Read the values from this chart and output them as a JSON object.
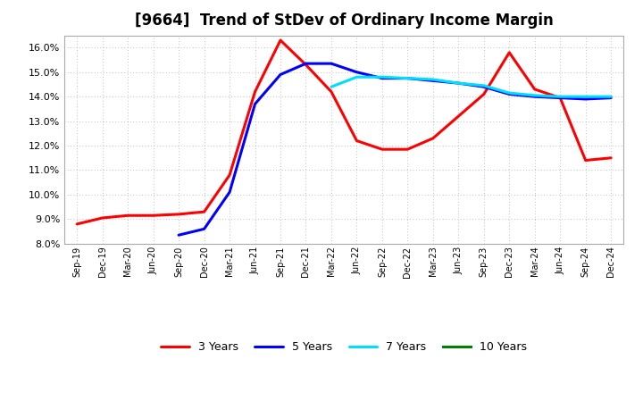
{
  "title": "[9664]  Trend of StDev of Ordinary Income Margin",
  "title_fontsize": 12,
  "ylim": [
    0.08,
    0.165
  ],
  "yticks": [
    0.08,
    0.09,
    0.1,
    0.11,
    0.12,
    0.13,
    0.14,
    0.15,
    0.16
  ],
  "background_color": "#ffffff",
  "grid_color": "#aaaaaa",
  "series": {
    "3 Years": {
      "color": "#ff0000",
      "data": [
        [
          "Sep-19",
          0.088
        ],
        [
          "Dec-19",
          0.0905
        ],
        [
          "Mar-20",
          0.0915
        ],
        [
          "Jun-20",
          0.0915
        ],
        [
          "Sep-20",
          0.092
        ],
        [
          "Dec-20",
          0.093
        ],
        [
          "Mar-21",
          0.108
        ],
        [
          "Jun-21",
          0.142
        ],
        [
          "Sep-21",
          0.163
        ],
        [
          "Dec-21",
          0.153
        ],
        [
          "Mar-22",
          0.142
        ],
        [
          "Jun-22",
          0.122
        ],
        [
          "Sep-22",
          0.1185
        ],
        [
          "Dec-22",
          0.1185
        ],
        [
          "Mar-23",
          0.123
        ],
        [
          "Jun-23",
          0.132
        ],
        [
          "Sep-23",
          0.141
        ],
        [
          "Dec-23",
          0.158
        ],
        [
          "Mar-24",
          0.143
        ],
        [
          "Jun-24",
          0.1395
        ],
        [
          "Sep-24",
          0.114
        ],
        [
          "Dec-24",
          0.115
        ]
      ]
    },
    "5 Years": {
      "color": "#0000ff",
      "data": [
        [
          "Sep-19",
          null
        ],
        [
          "Dec-19",
          null
        ],
        [
          "Mar-20",
          null
        ],
        [
          "Jun-20",
          null
        ],
        [
          "Sep-20",
          0.0835
        ],
        [
          "Dec-20",
          0.086
        ],
        [
          "Mar-21",
          0.101
        ],
        [
          "Jun-21",
          0.137
        ],
        [
          "Sep-21",
          0.149
        ],
        [
          "Dec-21",
          0.1535
        ],
        [
          "Mar-22",
          0.1535
        ],
        [
          "Jun-22",
          0.15
        ],
        [
          "Sep-22",
          0.1475
        ],
        [
          "Dec-22",
          0.1475
        ],
        [
          "Mar-23",
          0.1465
        ],
        [
          "Jun-23",
          0.1455
        ],
        [
          "Sep-23",
          0.144
        ],
        [
          "Dec-23",
          0.141
        ],
        [
          "Mar-24",
          0.14
        ],
        [
          "Jun-24",
          0.1395
        ],
        [
          "Sep-24",
          0.139
        ],
        [
          "Dec-24",
          0.1395
        ]
      ]
    },
    "7 Years": {
      "color": "#00ddff",
      "data": [
        [
          "Sep-19",
          null
        ],
        [
          "Dec-19",
          null
        ],
        [
          "Mar-20",
          null
        ],
        [
          "Jun-20",
          null
        ],
        [
          "Sep-20",
          null
        ],
        [
          "Dec-20",
          null
        ],
        [
          "Mar-21",
          null
        ],
        [
          "Jun-21",
          null
        ],
        [
          "Sep-21",
          null
        ],
        [
          "Dec-21",
          null
        ],
        [
          "Mar-22",
          0.144
        ],
        [
          "Jun-22",
          0.148
        ],
        [
          "Sep-22",
          0.148
        ],
        [
          "Dec-22",
          0.1475
        ],
        [
          "Mar-23",
          0.147
        ],
        [
          "Jun-23",
          0.1455
        ],
        [
          "Sep-23",
          0.1445
        ],
        [
          "Dec-23",
          0.1415
        ],
        [
          "Mar-24",
          0.1405
        ],
        [
          "Jun-24",
          0.14
        ],
        [
          "Sep-24",
          0.14
        ],
        [
          "Dec-24",
          0.14
        ]
      ]
    },
    "10 Years": {
      "color": "#008000",
      "data": [
        [
          "Sep-19",
          null
        ],
        [
          "Dec-19",
          null
        ],
        [
          "Mar-20",
          null
        ],
        [
          "Jun-20",
          null
        ],
        [
          "Sep-20",
          null
        ],
        [
          "Dec-20",
          null
        ],
        [
          "Mar-21",
          null
        ],
        [
          "Jun-21",
          null
        ],
        [
          "Sep-21",
          null
        ],
        [
          "Dec-21",
          null
        ],
        [
          "Mar-22",
          null
        ],
        [
          "Jun-22",
          null
        ],
        [
          "Sep-22",
          null
        ],
        [
          "Dec-22",
          null
        ],
        [
          "Mar-23",
          null
        ],
        [
          "Jun-23",
          null
        ],
        [
          "Sep-23",
          null
        ],
        [
          "Dec-23",
          null
        ],
        [
          "Mar-24",
          null
        ],
        [
          "Jun-24",
          null
        ],
        [
          "Sep-24",
          null
        ],
        [
          "Dec-24",
          null
        ]
      ]
    }
  },
  "xtick_labels": [
    "Sep-19",
    "Dec-19",
    "Mar-20",
    "Jun-20",
    "Sep-20",
    "Dec-20",
    "Mar-21",
    "Jun-21",
    "Sep-21",
    "Dec-21",
    "Mar-22",
    "Jun-22",
    "Sep-22",
    "Dec-22",
    "Mar-23",
    "Jun-23",
    "Sep-23",
    "Dec-23",
    "Mar-24",
    "Jun-24",
    "Sep-24",
    "Dec-24"
  ],
  "legend_entries": [
    "3 Years",
    "5 Years",
    "7 Years",
    "10 Years"
  ],
  "legend_colors": [
    "#ff0000",
    "#0000ff",
    "#00ddff",
    "#008000"
  ],
  "linewidth": 2.2
}
